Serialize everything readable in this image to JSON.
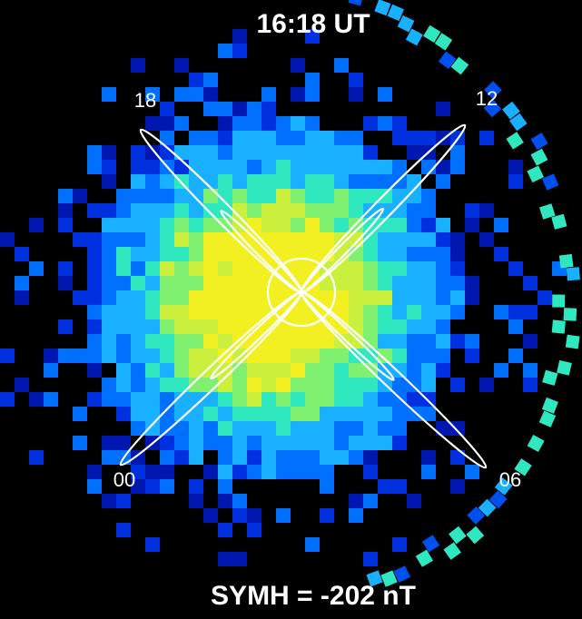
{
  "title": "16:18 UT",
  "local_time_labels": [
    "18",
    "12",
    "00",
    "06"
  ],
  "footer": "SYMH = -202 nT"
}
